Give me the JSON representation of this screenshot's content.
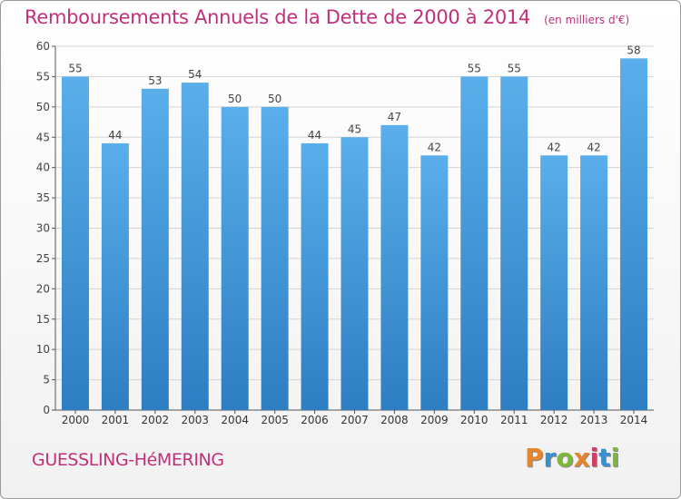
{
  "header": {
    "title": "Remboursements Annuels de la Dette de 2000 à 2014",
    "unit": "(en milliers d'€)"
  },
  "footer": {
    "commune": "GUESSLING-HéMERING",
    "logo_text": "Proxiti"
  },
  "colors": {
    "title": "#c0307a",
    "bar_top": "#5aaeea",
    "bar_bottom": "#2d7ec2",
    "logo_letters": [
      "#e8842a",
      "#3a8fd0",
      "#7cb83a",
      "#e8842a",
      "#d43b6a",
      "#3a8fd0",
      "#7cb83a"
    ]
  },
  "chart_data": {
    "type": "bar",
    "title": "Remboursements Annuels de la Dette de 2000 à 2014",
    "subtitle": "(en milliers d'€)",
    "xlabel": "",
    "ylabel": "",
    "categories": [
      "2000",
      "2001",
      "2002",
      "2003",
      "2004",
      "2005",
      "2006",
      "2007",
      "2008",
      "2009",
      "2010",
      "2011",
      "2012",
      "2013",
      "2014"
    ],
    "values": [
      55,
      44,
      53,
      54,
      50,
      50,
      44,
      45,
      47,
      42,
      55,
      55,
      42,
      42,
      58
    ],
    "ylim": [
      0,
      60
    ],
    "yticks": [
      0,
      5,
      10,
      15,
      20,
      25,
      30,
      35,
      40,
      45,
      50,
      55,
      60
    ],
    "grid": true,
    "data_labels": true
  }
}
